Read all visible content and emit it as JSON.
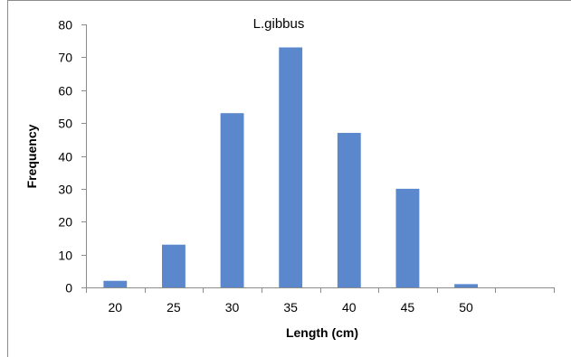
{
  "chart_data": {
    "type": "bar",
    "title": "L.gibbus",
    "xlabel": "Length (cm)",
    "ylabel": "Frequency",
    "categories": [
      "20",
      "25",
      "30",
      "35",
      "40",
      "45",
      "50",
      ""
    ],
    "values": [
      2,
      13,
      53,
      73,
      47,
      30,
      1,
      0
    ],
    "ylim": [
      0,
      80
    ],
    "yticks": [
      "0",
      "10",
      "20",
      "30",
      "40",
      "50",
      "60",
      "70",
      "80"
    ],
    "grid": false,
    "legend": "none",
    "bar_color": "#5b87cc"
  }
}
